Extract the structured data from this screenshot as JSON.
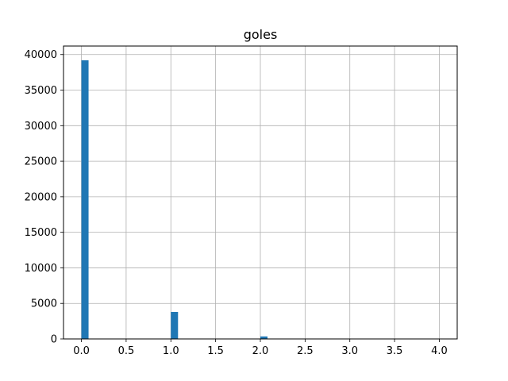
{
  "chart_data": {
    "type": "bar",
    "title": "goles",
    "xlabel": "",
    "ylabel": "",
    "bar_width": 0.08,
    "bars": [
      {
        "x": 0.04,
        "value": 39200
      },
      {
        "x": 1.04,
        "value": 3800
      },
      {
        "x": 2.04,
        "value": 350
      },
      {
        "x": 3.04,
        "value": 20
      },
      {
        "x": 4.04,
        "value": 3
      }
    ],
    "xlim": [
      -0.2,
      4.2
    ],
    "ylim": [
      0,
      41200
    ],
    "x_ticks": [
      "0.0",
      "0.5",
      "1.0",
      "1.5",
      "2.0",
      "2.5",
      "3.0",
      "3.5",
      "4.0"
    ],
    "y_ticks": [
      "0",
      "5000",
      "10000",
      "15000",
      "20000",
      "25000",
      "30000",
      "35000",
      "40000"
    ],
    "grid": true,
    "colors": {
      "bar": "#1f77b4",
      "grid": "#b0b0b0",
      "axis": "#000000"
    }
  }
}
